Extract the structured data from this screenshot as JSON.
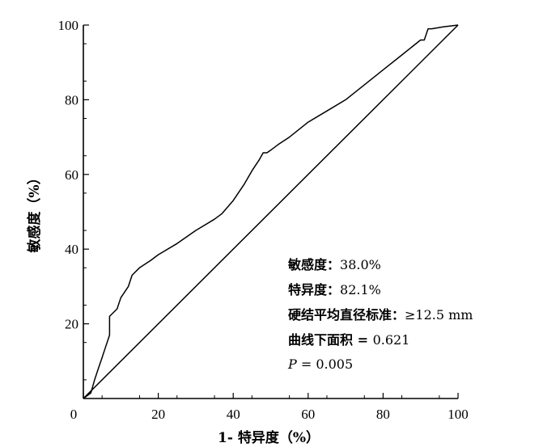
{
  "chart_data": {
    "type": "line",
    "xlabel": "1- 特异度（%）",
    "ylabel": "敏感度（%）",
    "xlim": [
      0,
      100
    ],
    "ylim": [
      0,
      100
    ],
    "x_ticks": [
      0,
      20,
      40,
      60,
      80,
      100
    ],
    "y_ticks": [
      20,
      40,
      60,
      80,
      100
    ],
    "x_tick_labels": [
      "0",
      "20",
      "40",
      "60",
      "80",
      "100"
    ],
    "y_tick_labels": [
      "20",
      "40",
      "60",
      "80",
      "100"
    ],
    "grid": false,
    "series": [
      {
        "x": [
          0,
          2,
          3,
          4,
          5,
          6,
          7,
          7,
          9,
          10,
          12,
          13,
          15,
          18,
          20,
          25,
          30,
          35,
          37,
          40,
          43,
          45,
          47,
          48,
          49,
          50,
          52,
          55,
          60,
          65,
          70,
          75,
          80,
          85,
          90,
          91,
          92,
          93,
          96,
          100
        ],
        "y": [
          0,
          1.5,
          5,
          8,
          11,
          14,
          17,
          22,
          24,
          27,
          30,
          33,
          35,
          37,
          38.5,
          41.5,
          45,
          48,
          49.5,
          53,
          57.5,
          61,
          64,
          65.8,
          65.8,
          66.5,
          68,
          70,
          74,
          77,
          80,
          84,
          88,
          92,
          96,
          96,
          99,
          99,
          99.5,
          100
        ]
      },
      {
        "x": [
          0,
          100
        ],
        "y": [
          0,
          100
        ]
      }
    ]
  },
  "annotations": {
    "sensitivity": {
      "label": "敏感度：",
      "value": "38.0%"
    },
    "specificity": {
      "label": "特异度：",
      "value": "82.1%"
    },
    "criterion": {
      "label": "硬结平均直径标准：",
      "value": "≥12.5 mm"
    },
    "auc": {
      "label": "曲线下面积 = ",
      "value": "0.621"
    },
    "p_value": {
      "label": "P",
      "value": " = 0.005"
    }
  }
}
